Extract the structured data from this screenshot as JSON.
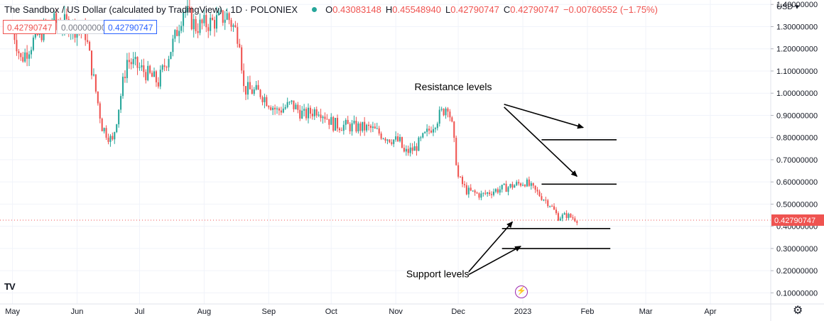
{
  "header": {
    "symbol": "The Sandbox / US Dollar (calculated by TradingView) · 1D · POLONIEX",
    "open_label": "O",
    "open": "0.43083148",
    "high_label": "H",
    "high": "0.45548940",
    "low_label": "L",
    "low": "0.42790747",
    "close_label": "C",
    "close": "0.42790747",
    "change": "−0.00760552 (−1.75%)"
  },
  "price_boxes": {
    "sell": "0.42790747",
    "spread": "0.00000000",
    "buy": "0.42790747"
  },
  "currency_menu": "USD",
  "colors": {
    "up": "#26a69a",
    "down": "#ef5350",
    "price_line": "#ef5350",
    "annotation": "#000000"
  },
  "icons": {
    "logo": "tradingview-logo-icon",
    "settings": "gear-icon",
    "events": "lightning-icon"
  },
  "chart_data": {
    "type": "candlestick",
    "y_axis": {
      "min": 0.05,
      "max": 1.42,
      "ticks": [
        0.1,
        0.2,
        0.3,
        0.4,
        0.5,
        0.6,
        0.7,
        0.8,
        0.9,
        1.0,
        1.1,
        1.2,
        1.3,
        1.4
      ],
      "tick_labels": [
        "0.10000000",
        "0.20000000",
        "0.30000000",
        "0.40000000",
        "0.50000000",
        "0.60000000",
        "0.70000000",
        "0.80000000",
        "0.90000000",
        "1.00000000",
        "1.10000000",
        "1.20000000",
        "1.30000000",
        "1.40000000"
      ]
    },
    "x_axis": {
      "start": "2022-04-25",
      "end": "2023-04-30",
      "labels": [
        {
          "date": "2022-05-01",
          "text": "May"
        },
        {
          "date": "2022-06-01",
          "text": "Jun"
        },
        {
          "date": "2022-07-01",
          "text": "Jul"
        },
        {
          "date": "2022-08-01",
          "text": "Aug"
        },
        {
          "date": "2022-09-01",
          "text": "Sep"
        },
        {
          "date": "2022-10-01",
          "text": "Oct"
        },
        {
          "date": "2022-11-01",
          "text": "Nov"
        },
        {
          "date": "2022-12-01",
          "text": "Dec"
        },
        {
          "date": "2023-01-01",
          "text": "2023"
        },
        {
          "date": "2023-02-01",
          "text": "Feb"
        },
        {
          "date": "2023-03-01",
          "text": "Mar"
        },
        {
          "date": "2023-04-01",
          "text": "Apr"
        }
      ]
    },
    "price_path": [
      {
        "date": "2022-05-01",
        "close": 1.3
      },
      {
        "date": "2022-05-05",
        "close": 1.15
      },
      {
        "date": "2022-05-12",
        "close": 1.25
      },
      {
        "date": "2022-05-20",
        "close": 1.32
      },
      {
        "date": "2022-05-28",
        "close": 1.31
      },
      {
        "date": "2022-06-05",
        "close": 1.27
      },
      {
        "date": "2022-06-13",
        "close": 0.85
      },
      {
        "date": "2022-06-18",
        "close": 0.78
      },
      {
        "date": "2022-06-25",
        "close": 1.15
      },
      {
        "date": "2022-07-03",
        "close": 1.1
      },
      {
        "date": "2022-07-10",
        "close": 1.05
      },
      {
        "date": "2022-07-18",
        "close": 1.25
      },
      {
        "date": "2022-07-22",
        "close": 1.38
      },
      {
        "date": "2022-07-28",
        "close": 1.3
      },
      {
        "date": "2022-08-05",
        "close": 1.32
      },
      {
        "date": "2022-08-12",
        "close": 1.35
      },
      {
        "date": "2022-08-18",
        "close": 1.25
      },
      {
        "date": "2022-08-20",
        "close": 1.02
      },
      {
        "date": "2022-08-28",
        "close": 1.0
      },
      {
        "date": "2022-09-05",
        "close": 0.92
      },
      {
        "date": "2022-09-12",
        "close": 0.95
      },
      {
        "date": "2022-09-18",
        "close": 0.9
      },
      {
        "date": "2022-09-25",
        "close": 0.93
      },
      {
        "date": "2022-10-02",
        "close": 0.86
      },
      {
        "date": "2022-10-10",
        "close": 0.85
      },
      {
        "date": "2022-10-20",
        "close": 0.84
      },
      {
        "date": "2022-10-28",
        "close": 0.8
      },
      {
        "date": "2022-11-03",
        "close": 0.78
      },
      {
        "date": "2022-11-05",
        "close": 0.73
      },
      {
        "date": "2022-11-10",
        "close": 0.75
      },
      {
        "date": "2022-11-16",
        "close": 0.82
      },
      {
        "date": "2022-11-22",
        "close": 0.9
      },
      {
        "date": "2022-11-26",
        "close": 0.95
      },
      {
        "date": "2022-11-28",
        "close": 0.85
      },
      {
        "date": "2022-12-01",
        "close": 0.62
      },
      {
        "date": "2022-12-05",
        "close": 0.56
      },
      {
        "date": "2022-12-12",
        "close": 0.54
      },
      {
        "date": "2022-12-18",
        "close": 0.56
      },
      {
        "date": "2022-12-26",
        "close": 0.58
      },
      {
        "date": "2023-01-02",
        "close": 0.6
      },
      {
        "date": "2023-01-08",
        "close": 0.55
      },
      {
        "date": "2023-01-14",
        "close": 0.5
      },
      {
        "date": "2023-01-18",
        "close": 0.44
      },
      {
        "date": "2023-01-22",
        "close": 0.45
      },
      {
        "date": "2023-01-27",
        "close": 0.43
      }
    ],
    "last_price": 0.42790747,
    "last_price_label": "0.42790747",
    "annotations": {
      "resistance_label": "Resistance levels",
      "support_label": "Support levels",
      "resistance_levels": [
        0.79,
        0.59
      ],
      "support_levels": [
        0.39,
        0.3
      ]
    }
  }
}
